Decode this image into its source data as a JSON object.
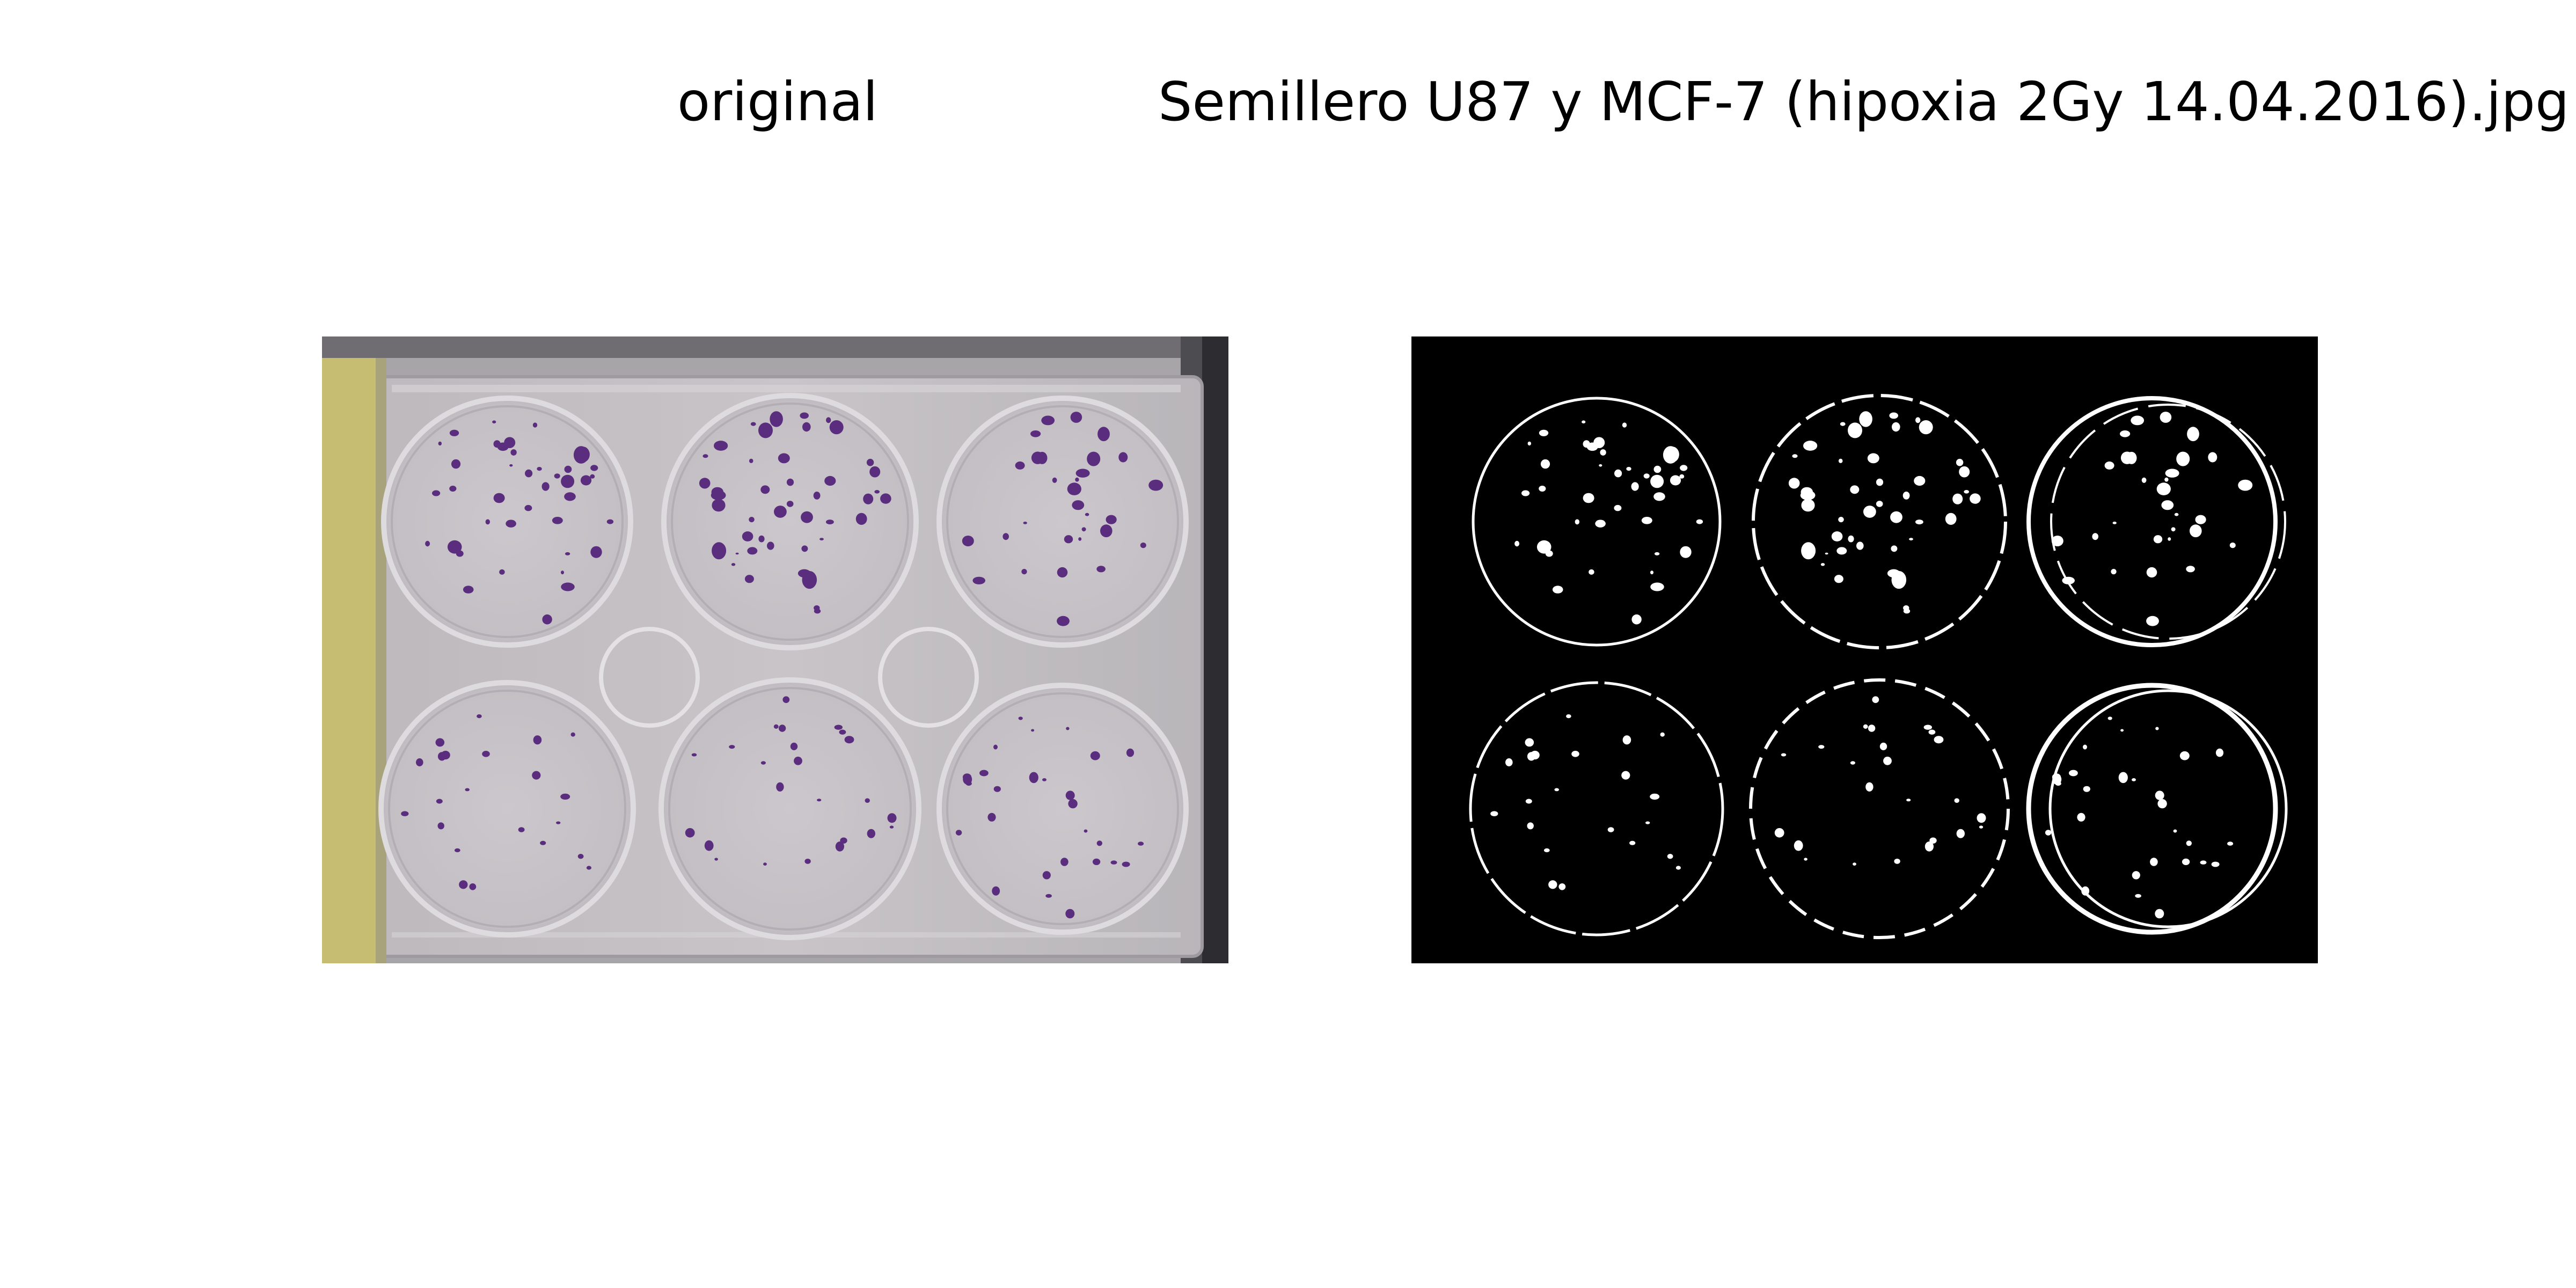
{
  "figure": {
    "left_title": "original",
    "right_title": "Semillero U87 y MCF-7 (hipoxia 2Gy 14.04.2016).jpg"
  },
  "colors": {
    "plate_background": "#c9c6c8",
    "plate_shadow": "#5e5d60",
    "yellow_tab": "#c9c07a",
    "colony_stain": "#5b2d7e",
    "mask_background": "#000000",
    "mask_foreground": "#ffffff"
  },
  "plate": {
    "rows": 2,
    "cols": 3
  }
}
